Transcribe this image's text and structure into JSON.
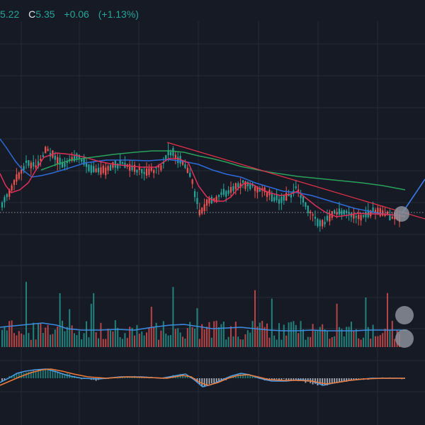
{
  "legend": {
    "open_partial": "5.22",
    "close_label": "C",
    "close_value": "5.35",
    "change": "+0.06",
    "change_pct": "(+1.13%)"
  },
  "colors": {
    "background": "#151a25",
    "grid": "#242a37",
    "up": "#26a69a",
    "down": "#ef5350",
    "ma_fast": "#e0305a",
    "ma_mid": "#2f6bd8",
    "ma_slow": "#2aa15b",
    "trendline": "#e0304a",
    "drawing_line": "#3a7ce8",
    "price_line": "#8a93a8",
    "volume_ma": "#3d8be0",
    "macd_line": "#4d9fe6",
    "signal_line": "#ef7a3a",
    "handle": "#8a8f9a"
  },
  "chart_data": {
    "type": "candlestick",
    "last_close": 5.35,
    "change": 0.06,
    "change_pct": 1.13,
    "grid": true,
    "panes": [
      "price",
      "volume",
      "macd"
    ],
    "overlays": [
      "moving-average-fast",
      "moving-average-mid",
      "moving-average-slow",
      "trendline",
      "drawing-line"
    ]
  }
}
